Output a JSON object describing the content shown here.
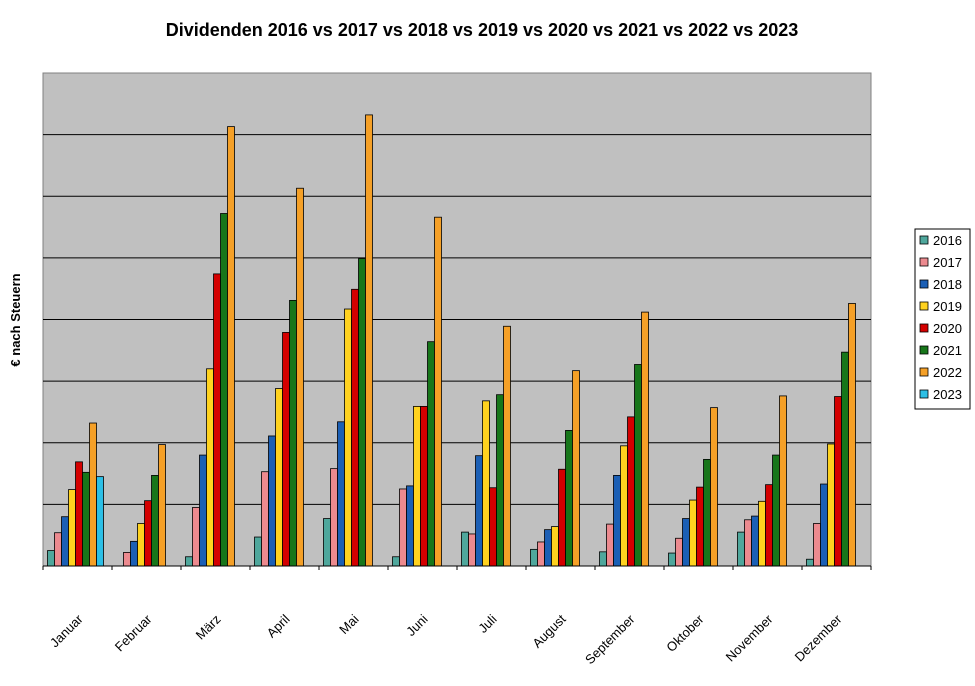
{
  "chart_data": {
    "type": "bar",
    "title": "Dividenden 2016 vs 2017 vs 2018 vs 2019 vs 2020 vs 2021 vs 2022 vs 2023",
    "xlabel": "",
    "ylabel": "€ nach Steuern",
    "ylim": [
      0,
      8
    ],
    "grid": true,
    "legend_position": "right",
    "categories": [
      "Januar",
      "Februar",
      "März",
      "April",
      "Mai",
      "Juni",
      "Juli",
      "August",
      "September",
      "Oktober",
      "November",
      "Dezember"
    ],
    "series": [
      {
        "name": "2016",
        "color": "#4fa79c",
        "values": [
          0.25,
          0,
          0.15,
          0.47,
          0.77,
          0.15,
          0.55,
          0.27,
          0.23,
          0.21,
          0.55,
          0.11
        ]
      },
      {
        "name": "2017",
        "color": "#ec8a8f",
        "values": [
          0.54,
          0.22,
          0.95,
          1.53,
          1.58,
          1.25,
          0.52,
          0.39,
          0.68,
          0.45,
          0.75,
          0.69
        ]
      },
      {
        "name": "2018",
        "color": "#1b5fb5",
        "values": [
          0.8,
          0.4,
          1.8,
          2.11,
          2.34,
          1.3,
          1.79,
          0.59,
          1.47,
          0.77,
          0.81,
          1.33
        ]
      },
      {
        "name": "2019",
        "color": "#ffd21f",
        "values": [
          1.24,
          0.69,
          3.2,
          2.88,
          4.17,
          2.59,
          2.68,
          0.64,
          1.95,
          1.07,
          1.05,
          1.98
        ]
      },
      {
        "name": "2020",
        "color": "#d40000",
        "values": [
          1.69,
          1.06,
          4.74,
          3.79,
          4.49,
          2.59,
          1.27,
          1.57,
          2.42,
          1.28,
          1.32,
          2.75
        ]
      },
      {
        "name": "2021",
        "color": "#17761a",
        "values": [
          1.52,
          1.47,
          5.72,
          4.31,
          4.99,
          3.64,
          2.78,
          2.2,
          3.27,
          1.73,
          1.8,
          3.47
        ]
      },
      {
        "name": "2022",
        "color": "#f5a027",
        "values": [
          2.32,
          1.97,
          7.13,
          6.13,
          7.32,
          5.66,
          3.89,
          3.17,
          4.12,
          2.57,
          2.76,
          4.26
        ]
      },
      {
        "name": "2023",
        "color": "#2cbfe6",
        "values": [
          1.45,
          null,
          null,
          null,
          null,
          null,
          null,
          null,
          null,
          null,
          null,
          null
        ]
      }
    ]
  }
}
